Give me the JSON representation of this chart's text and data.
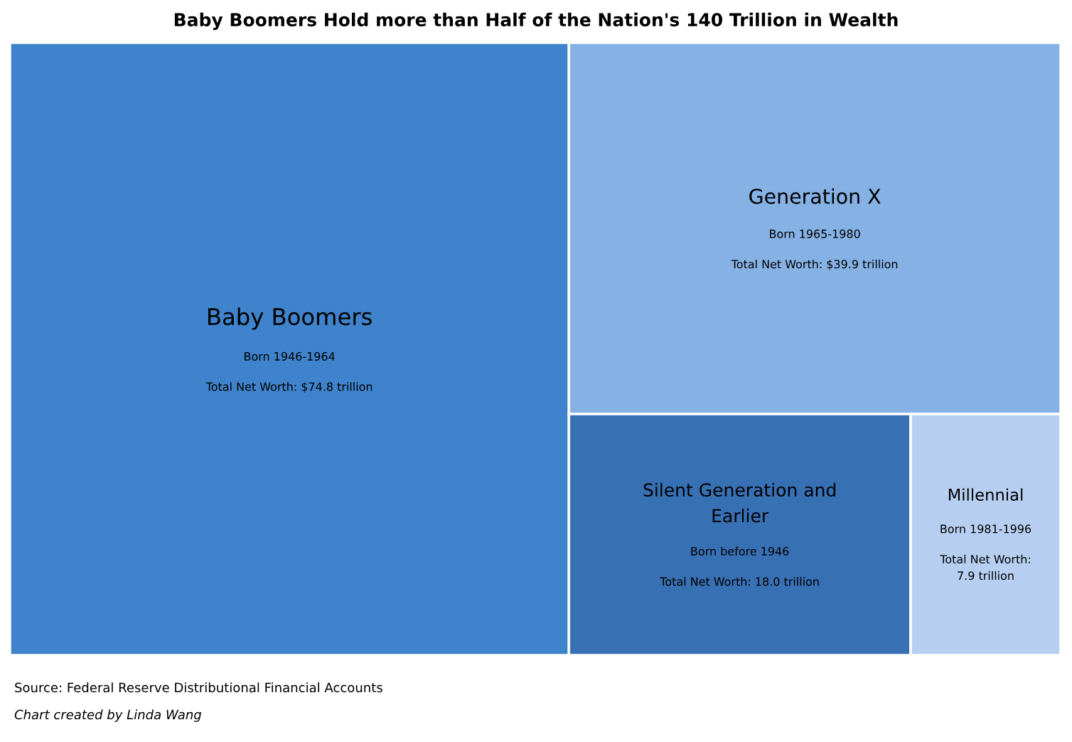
{
  "chart_data": {
    "type": "other",
    "title": "Baby Boomers Hold more than Half of the Nation's 140 Trillion in Wealth",
    "categories": [
      "Baby Boomers",
      "Generation X",
      "Silent Generation and Earlier",
      "Millennial"
    ],
    "values": [
      74.8,
      39.9,
      18.0,
      7.9
    ],
    "colors": [
      "#3f83cc",
      "#85b1e4",
      "#3870b4",
      "#b6cff0"
    ],
    "value_labels": [
      "Total Net Worth: $74.8 trillion",
      "Total Net Worth: $39.9 trillion",
      "Total Net Worth: 18.0 trillion",
      "Total Net Worth: 7.9 trillion"
    ],
    "annotations": [
      {
        "text": "Born 1946-1964",
        "x": "Baby Boomers"
      },
      {
        "text": "Born 1965-1980",
        "x": "Generation X"
      },
      {
        "text": "Born before 1946",
        "x": "Silent Generation and Earlier"
      },
      {
        "text": "Born 1981-1996",
        "x": "Millennial"
      },
      "Source: Federal Reserve Distributional Financial Accounts",
      "Chart created by Linda Wang"
    ]
  }
}
